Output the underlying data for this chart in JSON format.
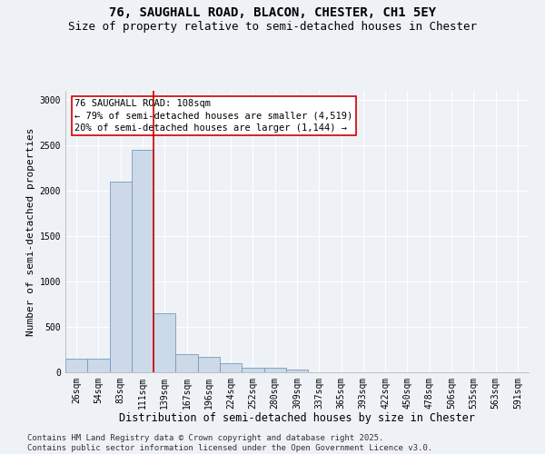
{
  "title_line1": "76, SAUGHALL ROAD, BLACON, CHESTER, CH1 5EY",
  "title_line2": "Size of property relative to semi-detached houses in Chester",
  "xlabel": "Distribution of semi-detached houses by size in Chester",
  "ylabel": "Number of semi-detached properties",
  "bar_color": "#ccd9e8",
  "bar_edge_color": "#7799bb",
  "categories": [
    "26sqm",
    "54sqm",
    "83sqm",
    "111sqm",
    "139sqm",
    "167sqm",
    "196sqm",
    "224sqm",
    "252sqm",
    "280sqm",
    "309sqm",
    "337sqm",
    "365sqm",
    "393sqm",
    "422sqm",
    "450sqm",
    "478sqm",
    "506sqm",
    "535sqm",
    "563sqm",
    "591sqm"
  ],
  "values": [
    150,
    155,
    2100,
    2450,
    650,
    200,
    175,
    100,
    50,
    50,
    30,
    0,
    0,
    0,
    0,
    0,
    0,
    0,
    0,
    0,
    0
  ],
  "vline_x_index": 3,
  "vline_color": "#cc0000",
  "annotation_title": "76 SAUGHALL ROAD: 108sqm",
  "annotation_line1": "← 79% of semi-detached houses are smaller (4,519)",
  "annotation_line2": "20% of semi-detached houses are larger (1,144) →",
  "annotation_box_color": "#ffffff",
  "annotation_box_edge": "#cc0000",
  "ylim": [
    0,
    3100
  ],
  "yticks": [
    0,
    500,
    1000,
    1500,
    2000,
    2500,
    3000
  ],
  "footer_line1": "Contains HM Land Registry data © Crown copyright and database right 2025.",
  "footer_line2": "Contains public sector information licensed under the Open Government Licence v3.0.",
  "background_color": "#eef2f7",
  "grid_color": "#ffffff",
  "title_fontsize": 10,
  "subtitle_fontsize": 9,
  "tick_fontsize": 7,
  "xlabel_fontsize": 8.5,
  "ylabel_fontsize": 8,
  "annotation_fontsize": 7.5,
  "footer_fontsize": 6.5
}
